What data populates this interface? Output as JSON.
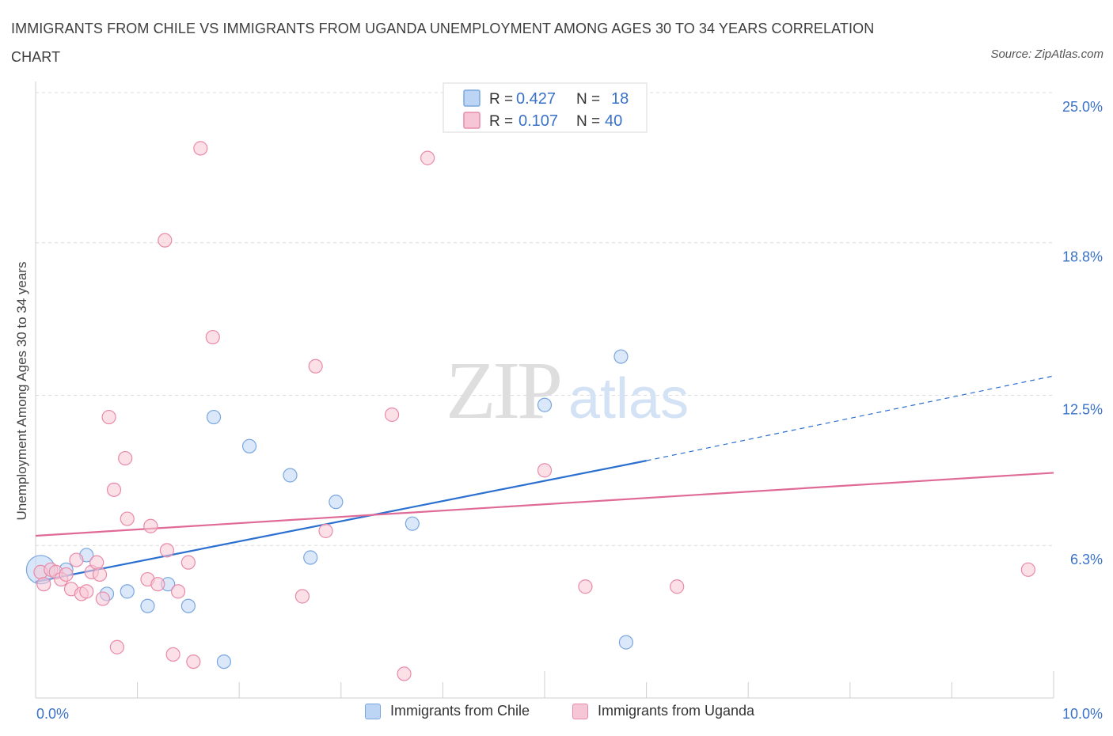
{
  "title": "IMMIGRANTS FROM CHILE VS IMMIGRANTS FROM UGANDA UNEMPLOYMENT AMONG AGES 30 TO 34 YEARS CORRELATION CHART",
  "source": "Source: ZipAtlas.com",
  "watermark": {
    "zip": "ZIP",
    "atlas": "atlas"
  },
  "colors": {
    "chile_fill": "#bcd5f5",
    "chile_stroke": "#7aa6e0",
    "chile_line": "#2b6fd0",
    "uganda_fill": "#f7c6d6",
    "uganda_stroke": "#e98aa8",
    "uganda_line": "#e06a96",
    "tick_label": "#3a72c8",
    "grid": "#dcdcdc"
  },
  "chart_data": {
    "type": "scatter",
    "title": "IMMIGRANTS FROM CHILE VS IMMIGRANTS FROM UGANDA UNEMPLOYMENT AMONG AGES 30 TO 34 YEARS CORRELATION CHART",
    "xlabel": "",
    "ylabel": "Unemployment Among Ages 30 to 34 years",
    "xlim": [
      0,
      10
    ],
    "ylim": [
      0,
      25.0
    ],
    "x_tick_labels": [
      "0.0%",
      "10.0%"
    ],
    "y_ticks": [
      6.3,
      12.5,
      18.8,
      25.0
    ],
    "y_tick_labels": [
      "6.3%",
      "12.5%",
      "18.8%",
      "25.0%"
    ],
    "grid": true,
    "legend_position": "top-center",
    "series": [
      {
        "name": "Immigrants from Chile",
        "R": "0.427",
        "N": "18",
        "trend": {
          "x0": 0,
          "y0": 4.8,
          "x1": 6.0,
          "y1": 9.8,
          "dash_to_x": 10,
          "dash_to_y": 13.3
        },
        "points": [
          {
            "x": 0.05,
            "y": 5.3,
            "big": true
          },
          {
            "x": 0.3,
            "y": 5.3
          },
          {
            "x": 0.5,
            "y": 5.9
          },
          {
            "x": 0.7,
            "y": 4.3
          },
          {
            "x": 0.9,
            "y": 4.4
          },
          {
            "x": 1.1,
            "y": 3.8
          },
          {
            "x": 1.3,
            "y": 4.7
          },
          {
            "x": 1.5,
            "y": 3.8
          },
          {
            "x": 1.75,
            "y": 11.6
          },
          {
            "x": 1.85,
            "y": 1.5
          },
          {
            "x": 2.1,
            "y": 10.4
          },
          {
            "x": 2.5,
            "y": 9.2
          },
          {
            "x": 2.7,
            "y": 5.8
          },
          {
            "x": 2.95,
            "y": 8.1
          },
          {
            "x": 3.7,
            "y": 7.2
          },
          {
            "x": 5.0,
            "y": 12.1
          },
          {
            "x": 5.75,
            "y": 14.1
          },
          {
            "x": 5.8,
            "y": 2.3
          }
        ]
      },
      {
        "name": "Immigrants from Uganda",
        "R": "0.107",
        "N": "40",
        "trend": {
          "x0": 0,
          "y0": 6.7,
          "x1": 10,
          "y1": 9.3
        },
        "points": [
          {
            "x": 0.05,
            "y": 5.2
          },
          {
            "x": 0.08,
            "y": 4.7
          },
          {
            "x": 0.15,
            "y": 5.3
          },
          {
            "x": 0.2,
            "y": 5.2
          },
          {
            "x": 0.25,
            "y": 4.9
          },
          {
            "x": 0.3,
            "y": 5.1
          },
          {
            "x": 0.35,
            "y": 4.5
          },
          {
            "x": 0.4,
            "y": 5.7
          },
          {
            "x": 0.45,
            "y": 4.3
          },
          {
            "x": 0.5,
            "y": 4.4
          },
          {
            "x": 0.55,
            "y": 5.2
          },
          {
            "x": 0.6,
            "y": 5.6
          },
          {
            "x": 0.63,
            "y": 5.1
          },
          {
            "x": 0.66,
            "y": 4.1
          },
          {
            "x": 0.72,
            "y": 11.6
          },
          {
            "x": 0.77,
            "y": 8.6
          },
          {
            "x": 0.8,
            "y": 2.1
          },
          {
            "x": 0.88,
            "y": 9.9
          },
          {
            "x": 0.9,
            "y": 7.4
          },
          {
            "x": 1.1,
            "y": 4.9
          },
          {
            "x": 1.13,
            "y": 7.1
          },
          {
            "x": 1.2,
            "y": 4.7
          },
          {
            "x": 1.27,
            "y": 18.9
          },
          {
            "x": 1.29,
            "y": 6.1
          },
          {
            "x": 1.35,
            "y": 1.8
          },
          {
            "x": 1.4,
            "y": 4.4
          },
          {
            "x": 1.5,
            "y": 5.6
          },
          {
            "x": 1.55,
            "y": 1.5
          },
          {
            "x": 1.62,
            "y": 22.7
          },
          {
            "x": 1.74,
            "y": 14.9
          },
          {
            "x": 2.62,
            "y": 4.2
          },
          {
            "x": 2.75,
            "y": 13.7
          },
          {
            "x": 2.85,
            "y": 6.9
          },
          {
            "x": 3.5,
            "y": 11.7
          },
          {
            "x": 3.62,
            "y": 1.0
          },
          {
            "x": 3.85,
            "y": 22.3
          },
          {
            "x": 5.0,
            "y": 9.4
          },
          {
            "x": 5.4,
            "y": 4.6
          },
          {
            "x": 6.3,
            "y": 4.6
          },
          {
            "x": 9.75,
            "y": 5.3
          }
        ]
      }
    ]
  },
  "legend_top": {
    "rows": [
      {
        "r_label": "R =",
        "r_value": "0.427",
        "n_label": "N =",
        "n_value": "18"
      },
      {
        "r_label": "R =",
        "r_value": "0.107",
        "n_label": "N =",
        "n_value": "40"
      }
    ]
  },
  "legend_bottom": [
    {
      "label": "Immigrants from Chile"
    },
    {
      "label": "Immigrants from Uganda"
    }
  ]
}
